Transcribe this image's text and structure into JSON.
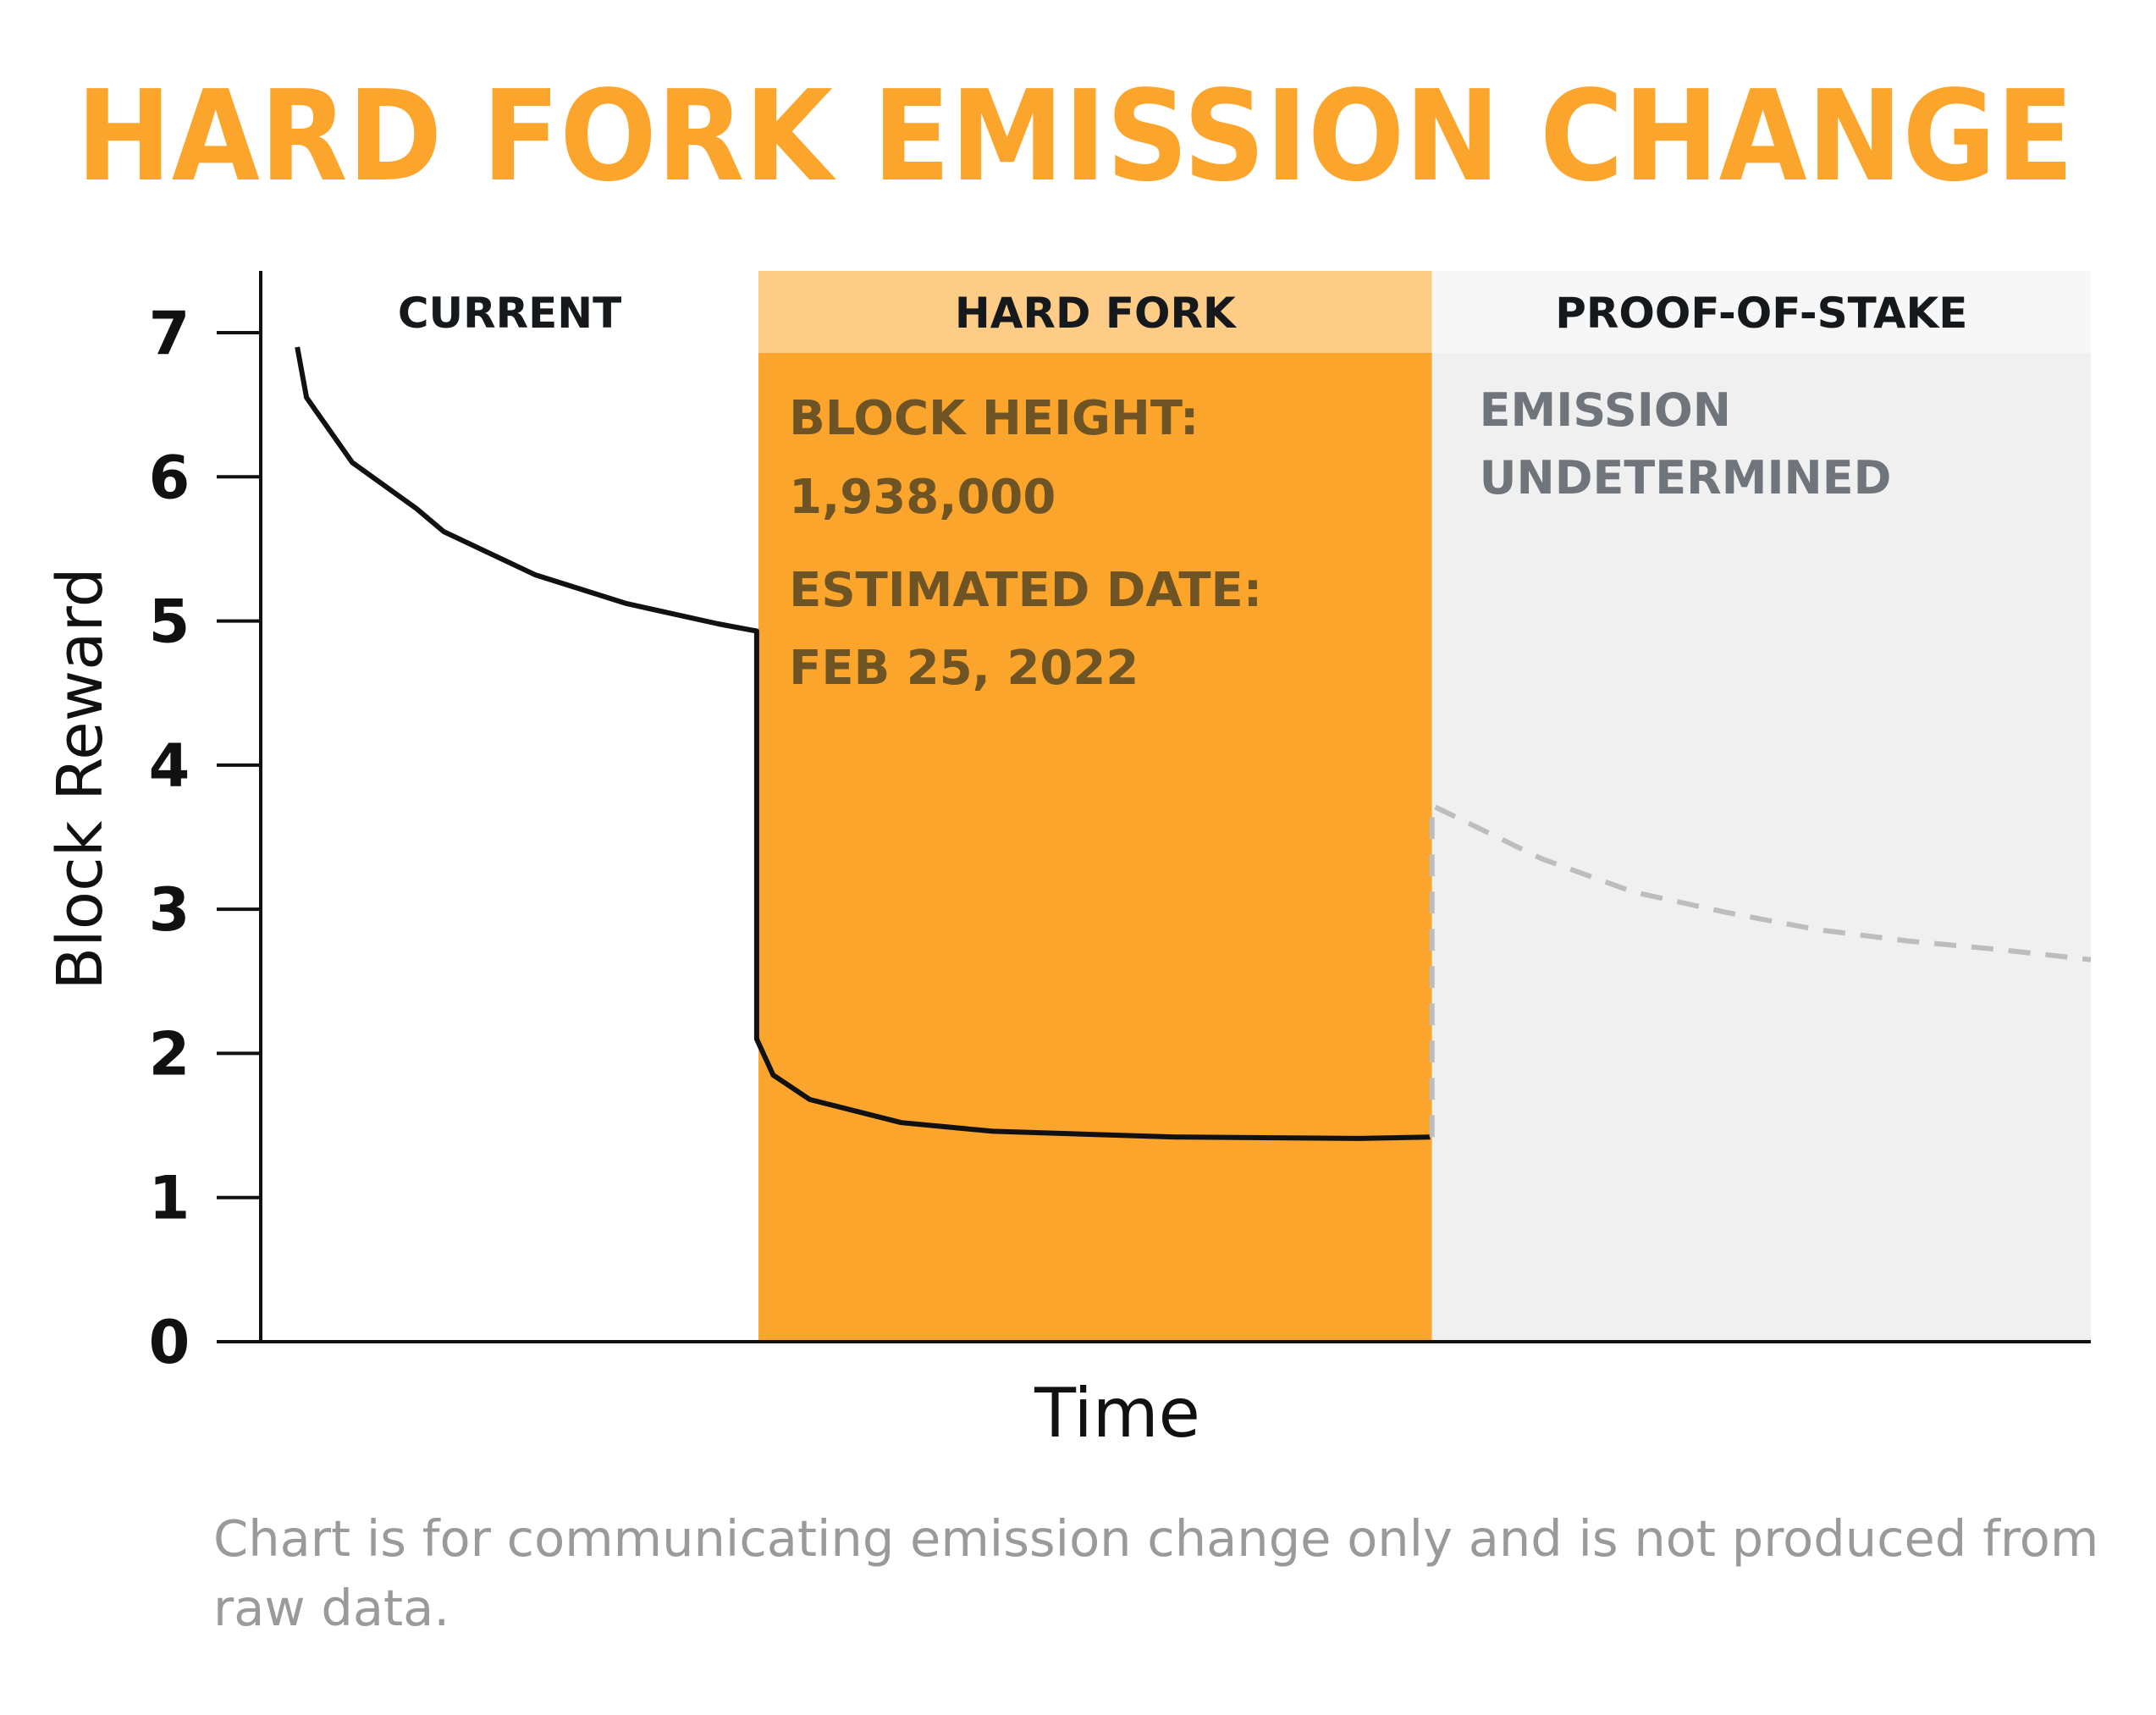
{
  "title": "HARD FORK EMISSION CHANGE",
  "footnote_lines": [
    "Chart is for communicating emission change only and is not produced from",
    "raw data."
  ],
  "colors": {
    "title": "#FBA52C",
    "hard_fork_fill": "#FBA52C",
    "hard_fork_header": "#FDCD88",
    "pos_fill": "#F0F0F0",
    "pos_header": "#F7F7F7",
    "curve": "#111111",
    "projection": "#BDBDBD",
    "annotation_dark": "#6E5424",
    "annotation_gray": "#6F757A",
    "footnote": "#9A9A9A",
    "axis": "#111111"
  },
  "chart_data": {
    "type": "line",
    "title": "HARD FORK EMISSION CHANGE",
    "xlabel": "Time",
    "ylabel": "Block Reward",
    "ylim": [
      0,
      7.5
    ],
    "yticks": [
      0,
      1,
      2,
      3,
      4,
      5,
      6,
      7
    ],
    "xlim": [
      0,
      1
    ],
    "grid": false,
    "regions": [
      {
        "label": "CURRENT",
        "x_start": 0.0,
        "x_end": 0.272,
        "lines": []
      },
      {
        "label": "HARD FORK",
        "x_start": 0.272,
        "x_end": 0.64,
        "lines": [
          "BLOCK HEIGHT:",
          "1,938,000",
          "ESTIMATED DATE:",
          "FEB 25, 2022"
        ]
      },
      {
        "label": "PROOF-OF-STAKE",
        "x_start": 0.64,
        "x_end": 1.0,
        "lines": [
          "EMISSION",
          "UNDETERMINED"
        ]
      }
    ],
    "series": [
      {
        "style": "solid",
        "points": [
          [
            0.02,
            6.9
          ],
          [
            0.025,
            6.55
          ],
          [
            0.05,
            6.1
          ],
          [
            0.085,
            5.78
          ],
          [
            0.1,
            5.62
          ],
          [
            0.15,
            5.32
          ],
          [
            0.2,
            5.12
          ],
          [
            0.25,
            4.98
          ],
          [
            0.271,
            4.93
          ],
          [
            0.271,
            2.1
          ],
          [
            0.28,
            1.85
          ],
          [
            0.3,
            1.68
          ],
          [
            0.35,
            1.52
          ],
          [
            0.4,
            1.46
          ],
          [
            0.5,
            1.42
          ],
          [
            0.6,
            1.41
          ],
          [
            0.639,
            1.42
          ]
        ]
      },
      {
        "style": "dashed",
        "points": [
          [
            0.64,
            1.42
          ],
          [
            0.64,
            3.72
          ],
          [
            0.7,
            3.35
          ],
          [
            0.75,
            3.12
          ],
          [
            0.8,
            2.98
          ],
          [
            0.85,
            2.86
          ],
          [
            0.9,
            2.78
          ],
          [
            0.95,
            2.72
          ],
          [
            1.0,
            2.65
          ]
        ]
      }
    ]
  }
}
